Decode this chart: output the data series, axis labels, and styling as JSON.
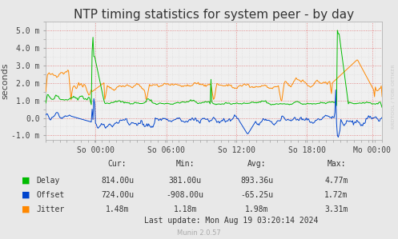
{
  "title": "NTP timing statistics for system peer - by day",
  "ylabel": "seconds",
  "background_color": "#e8e8e8",
  "plot_bg_color": "#f0f0f0",
  "ylim": [
    -0.00125,
    0.0055
  ],
  "yticks": [
    -0.001,
    0.0,
    0.001,
    0.002,
    0.003,
    0.004,
    0.005
  ],
  "ytick_labels": [
    "-1.0 m",
    "0.0",
    "1.0 m",
    "2.0 m",
    "3.0 m",
    "4.0 m",
    "5.0 m"
  ],
  "xtick_positions": [
    0.148,
    0.358,
    0.567,
    0.776,
    0.97
  ],
  "xtick_labels": [
    "So 00:00",
    "So 06:00",
    "So 12:00",
    "So 18:00",
    "Mo 00:00"
  ],
  "delay_color": "#00bb00",
  "offset_color": "#0044cc",
  "jitter_color": "#ff8800",
  "stats_header": [
    "Cur:",
    "Min:",
    "Avg:",
    "Max:"
  ],
  "delay_stats": [
    "814.00u",
    "381.00u",
    "893.36u",
    "4.77m"
  ],
  "offset_stats": [
    "724.00u",
    "-908.00u",
    "-65.25u",
    "1.72m"
  ],
  "jitter_stats": [
    "1.48m",
    "1.18m",
    "1.98m",
    "3.31m"
  ],
  "last_update": "Last update: Mon Aug 19 03:20:14 2024",
  "munin_label": "Munin 2.0.57",
  "rrdtool_label": "RRDTOOL / TOBI OETIKER",
  "title_fontsize": 11,
  "axis_fontsize": 8,
  "tick_fontsize": 7,
  "stats_fontsize": 7
}
